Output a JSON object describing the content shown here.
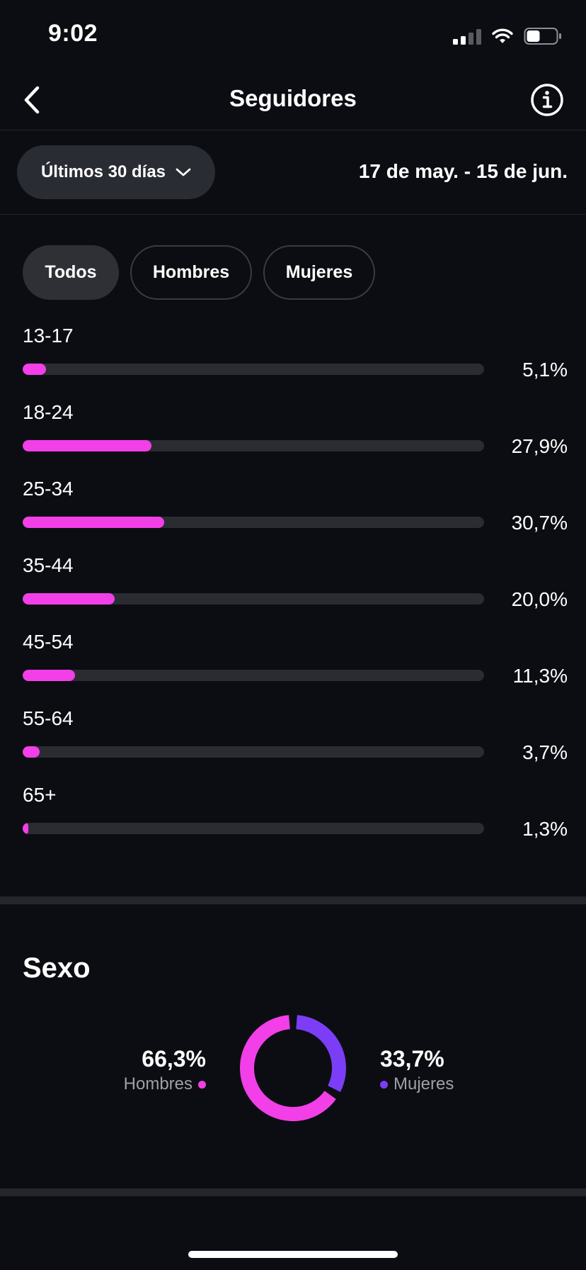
{
  "status_bar": {
    "time": "9:02"
  },
  "nav": {
    "title": "Seguidores"
  },
  "filter": {
    "range_label": "Últimos 30 días",
    "date_range": "17 de may. - 15 de jun."
  },
  "tabs": [
    {
      "label": "Todos",
      "active": true
    },
    {
      "label": "Hombres",
      "active": false
    },
    {
      "label": "Mujeres",
      "active": false
    }
  ],
  "age_groups": [
    {
      "label": "13-17",
      "value": "5,1%",
      "fraction": 0.051
    },
    {
      "label": "18-24",
      "value": "27,9%",
      "fraction": 0.279
    },
    {
      "label": "25-34",
      "value": "30,7%",
      "fraction": 0.307
    },
    {
      "label": "35-44",
      "value": "20,0%",
      "fraction": 0.2
    },
    {
      "label": "45-54",
      "value": "11,3%",
      "fraction": 0.113
    },
    {
      "label": "55-64",
      "value": "3,7%",
      "fraction": 0.037
    },
    {
      "label": "65+",
      "value": "1,3%",
      "fraction": 0.013
    }
  ],
  "gender": {
    "title": "Sexo",
    "men": {
      "percent": "66,3%",
      "label": "Hombres",
      "fraction": 0.663,
      "color": "#f23fe8"
    },
    "women": {
      "percent": "33,7%",
      "label": "Mujeres",
      "fraction": 0.337,
      "color": "#7b3df5"
    }
  },
  "colors": {
    "accent_pink": "#f23fe8",
    "accent_purple": "#7b3df5",
    "background": "#0c0d12"
  }
}
